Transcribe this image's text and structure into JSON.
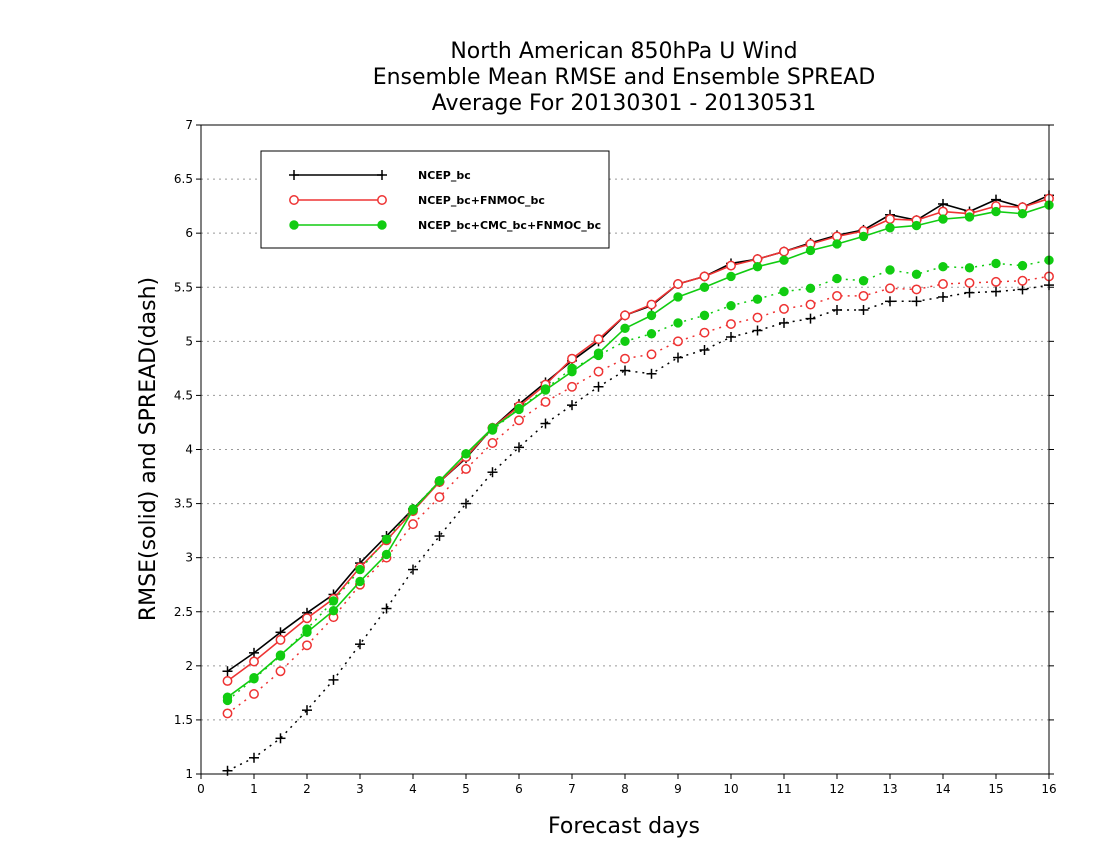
{
  "chart_data": {
    "type": "line",
    "title_lines": [
      "North American 850hPa U Wind",
      "Ensemble Mean RMSE and Ensemble SPREAD",
      "Average For 20130301 - 20130531"
    ],
    "xlabel": "Forecast days",
    "ylabel": "RMSE(solid) and SPREAD(dash)",
    "xlim": [
      0,
      16
    ],
    "ylim": [
      1,
      7
    ],
    "x_ticks": [
      0,
      1,
      2,
      3,
      4,
      5,
      6,
      7,
      8,
      9,
      10,
      11,
      12,
      13,
      14,
      15,
      16
    ],
    "y_ticks": [
      1,
      1.5,
      2,
      2.5,
      3,
      3.5,
      4,
      4.5,
      5,
      5.5,
      6,
      6.5,
      7
    ],
    "y_tick_labels": [
      "1",
      "1.5",
      "2",
      "2.5",
      "3",
      "3.5",
      "4",
      "4.5",
      "5",
      "5.5",
      "6",
      "6.5",
      "7"
    ],
    "grid": "horizontal dotted",
    "legend_position": "top-left",
    "x": [
      0.5,
      1,
      1.5,
      2,
      2.5,
      3,
      3.5,
      4,
      4.5,
      5,
      5.5,
      6,
      6.5,
      7,
      7.5,
      8,
      8.5,
      9,
      9.5,
      10,
      10.5,
      11,
      11.5,
      12,
      12.5,
      13,
      13.5,
      14,
      14.5,
      15,
      15.5,
      16
    ],
    "series": [
      {
        "name": "NCEP_bc",
        "color": "#000000",
        "marker": "plus",
        "rmse": [
          1.95,
          2.12,
          2.31,
          2.49,
          2.66,
          2.95,
          3.2,
          3.45,
          3.7,
          3.92,
          4.2,
          4.42,
          4.62,
          4.82,
          5.0,
          5.24,
          5.33,
          5.53,
          5.6,
          5.72,
          5.76,
          5.83,
          5.91,
          5.98,
          6.03,
          6.17,
          6.12,
          6.27,
          6.2,
          6.31,
          6.24,
          6.35
        ],
        "spread": [
          1.03,
          1.15,
          1.33,
          1.59,
          1.87,
          2.2,
          2.53,
          2.89,
          3.2,
          3.5,
          3.79,
          4.02,
          4.24,
          4.41,
          4.58,
          4.73,
          4.7,
          4.85,
          4.92,
          5.04,
          5.1,
          5.17,
          5.21,
          5.29,
          5.29,
          5.37,
          5.37,
          5.41,
          5.45,
          5.46,
          5.48,
          5.52
        ]
      },
      {
        "name": "NCEP_bc+FNMOC_bc",
        "color": "#ee3333",
        "marker": "open-circle",
        "rmse": [
          1.86,
          2.04,
          2.24,
          2.44,
          2.62,
          2.91,
          3.16,
          3.43,
          3.7,
          3.93,
          4.2,
          4.4,
          4.6,
          4.84,
          5.02,
          5.24,
          5.34,
          5.53,
          5.6,
          5.7,
          5.76,
          5.83,
          5.9,
          5.97,
          6.02,
          6.13,
          6.12,
          6.2,
          6.18,
          6.25,
          6.24,
          6.32
        ],
        "spread": [
          1.56,
          1.74,
          1.95,
          2.19,
          2.45,
          2.75,
          3.0,
          3.31,
          3.56,
          3.82,
          4.06,
          4.27,
          4.44,
          4.58,
          4.72,
          4.84,
          4.88,
          5.0,
          5.08,
          5.16,
          5.22,
          5.3,
          5.34,
          5.42,
          5.42,
          5.49,
          5.48,
          5.53,
          5.54,
          5.55,
          5.56,
          5.6
        ]
      },
      {
        "name": "NCEP_bc+CMC_bc+FNMOC_bc",
        "color": "#11cc11",
        "marker": "filled-circle",
        "rmse": [
          1.71,
          1.89,
          2.1,
          2.31,
          2.51,
          2.78,
          3.03,
          3.44,
          3.71,
          3.96,
          4.2,
          4.37,
          4.55,
          4.72,
          4.89,
          5.12,
          5.24,
          5.41,
          5.5,
          5.6,
          5.69,
          5.75,
          5.84,
          5.9,
          5.97,
          6.05,
          6.07,
          6.13,
          6.15,
          6.2,
          6.18,
          6.26
        ],
        "spread": [
          1.68,
          1.88,
          2.09,
          2.34,
          2.6,
          2.89,
          3.17,
          3.45,
          3.71,
          3.96,
          4.18,
          4.38,
          4.56,
          4.75,
          4.87,
          5.0,
          5.07,
          5.17,
          5.24,
          5.33,
          5.39,
          5.46,
          5.49,
          5.58,
          5.56,
          5.66,
          5.62,
          5.69,
          5.68,
          5.72,
          5.7,
          5.75
        ]
      }
    ]
  }
}
